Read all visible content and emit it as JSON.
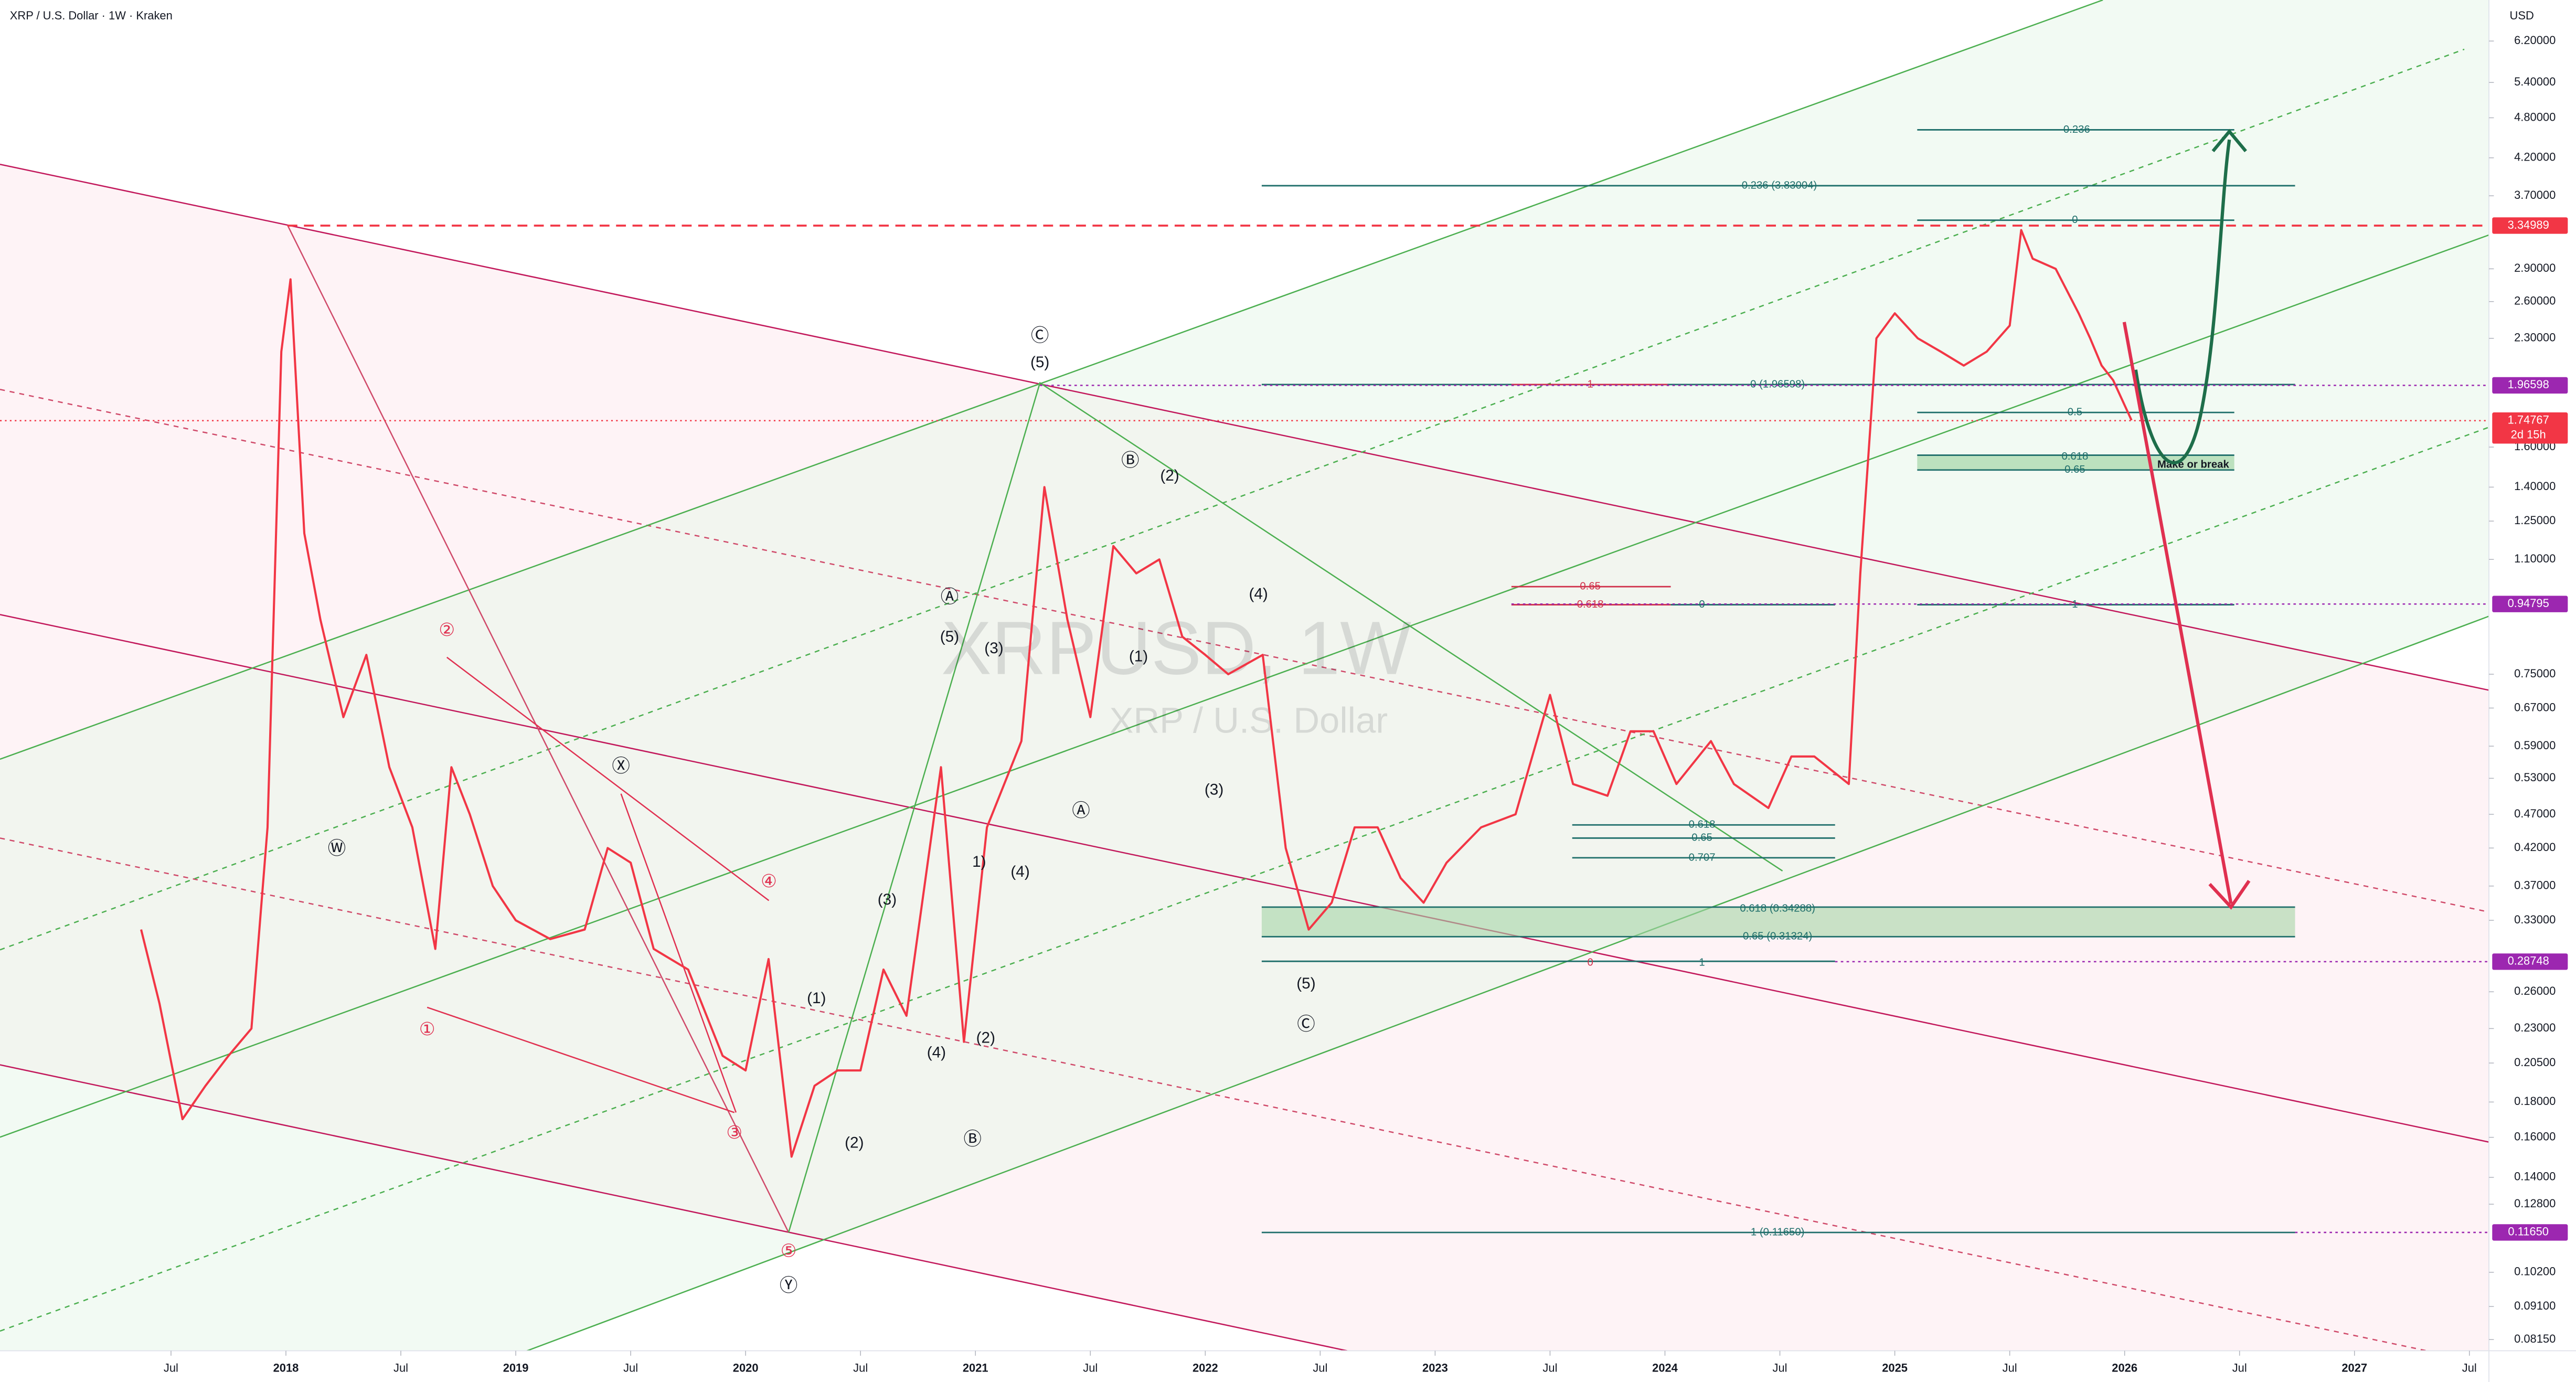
{
  "chart_data": {
    "type": "line",
    "color": "#f23645",
    "log_scale": true,
    "x": [
      2017.37,
      2017.45,
      2017.55,
      2017.65,
      2017.75,
      2017.85,
      2017.92,
      2017.98,
      2018.02,
      2018.08,
      2018.15,
      2018.25,
      2018.35,
      2018.45,
      2018.55,
      2018.65,
      2018.72,
      2018.8,
      2018.9,
      2019.0,
      2019.15,
      2019.3,
      2019.4,
      2019.5,
      2019.6,
      2019.75,
      2019.9,
      2020.0,
      2020.1,
      2020.2,
      2020.3,
      2020.4,
      2020.5,
      2020.6,
      2020.7,
      2020.85,
      2020.95,
      2021.05,
      2021.2,
      2021.3,
      2021.4,
      2021.5,
      2021.6,
      2021.7,
      2021.8,
      2021.9,
      2022.0,
      2022.1,
      2022.25,
      2022.35,
      2022.45,
      2022.55,
      2022.65,
      2022.75,
      2022.85,
      2022.95,
      2023.05,
      2023.2,
      2023.35,
      2023.5,
      2023.6,
      2023.75,
      2023.85,
      2023.95,
      2024.05,
      2024.2,
      2024.3,
      2024.45,
      2024.55,
      2024.65,
      2024.8,
      2024.85,
      2024.92,
      2025.0,
      2025.1,
      2025.2,
      2025.3,
      2025.4,
      2025.5,
      2025.55,
      2025.6,
      2025.7,
      2025.8,
      2025.85,
      2025.9,
      2025.95,
      2026.03
    ],
    "values": [
      0.32,
      0.25,
      0.17,
      0.19,
      0.21,
      0.23,
      0.45,
      2.2,
      2.8,
      1.2,
      0.9,
      0.65,
      0.8,
      0.55,
      0.45,
      0.3,
      0.55,
      0.47,
      0.37,
      0.33,
      0.31,
      0.32,
      0.42,
      0.4,
      0.3,
      0.28,
      0.21,
      0.2,
      0.29,
      0.15,
      0.19,
      0.2,
      0.2,
      0.28,
      0.24,
      0.55,
      0.22,
      0.45,
      0.6,
      1.4,
      0.9,
      0.65,
      1.15,
      1.05,
      1.1,
      0.85,
      0.8,
      0.75,
      0.8,
      0.42,
      0.32,
      0.35,
      0.45,
      0.45,
      0.38,
      0.35,
      0.4,
      0.45,
      0.47,
      0.7,
      0.52,
      0.5,
      0.62,
      0.62,
      0.52,
      0.6,
      0.52,
      0.48,
      0.57,
      0.57,
      0.52,
      1.05,
      2.3,
      2.5,
      2.3,
      2.2,
      2.1,
      2.2,
      2.4,
      3.3,
      3.0,
      2.9,
      2.5,
      2.3,
      2.1,
      2.0,
      1.75
    ],
    "xlim": [
      2016.756,
      2027.585
    ],
    "xticks": [
      {
        "value": 2017.5,
        "label": "Jul"
      },
      2018,
      {
        "value": 2018.5,
        "label": "Jul"
      },
      2019,
      {
        "value": 2019.5,
        "label": "Jul"
      },
      2020,
      {
        "value": 2020.5,
        "label": "Jul"
      },
      2021,
      {
        "value": 2021.5,
        "label": "Jul"
      },
      2022,
      {
        "value": 2022.5,
        "label": "Jul"
      },
      2023,
      {
        "value": 2023.5,
        "label": "Jul"
      },
      2024,
      {
        "value": 2024.5,
        "label": "Jul"
      },
      2025,
      {
        "value": 2025.5,
        "label": "Jul"
      },
      2026,
      {
        "value": 2026.5,
        "label": "Jul"
      },
      2027,
      {
        "value": 2027.5,
        "label": "Jul"
      }
    ],
    "ylim": [
      0.0785,
      7.11
    ],
    "yticks": [
      {
        "value": 6.2,
        "label": "6.20000"
      },
      {
        "value": 5.4,
        "label": "5.40000"
      },
      {
        "value": 4.8,
        "label": "4.80000"
      },
      {
        "value": 4.2,
        "label": "4.20000"
      },
      {
        "value": 3.7,
        "label": "3.70000"
      },
      {
        "value": 2.9,
        "label": "2.90000"
      },
      {
        "value": 2.6,
        "label": "2.60000"
      },
      {
        "value": 2.3,
        "label": "2.30000"
      },
      {
        "value": 1.6,
        "label": "1.60000"
      },
      {
        "value": 1.4,
        "label": "1.40000"
      },
      {
        "value": 1.25,
        "label": "1.25000"
      },
      {
        "value": 1.1,
        "label": "1.10000"
      },
      {
        "value": 0.75,
        "label": "0.75000"
      },
      {
        "value": 0.67,
        "label": "0.67000"
      },
      {
        "value": 0.59,
        "label": "0.59000"
      },
      {
        "value": 0.53,
        "label": "0.53000"
      },
      {
        "value": 0.47,
        "label": "0.47000"
      },
      {
        "value": 0.42,
        "label": "0.42000"
      },
      {
        "value": 0.37,
        "label": "0.37000"
      },
      {
        "value": 0.33,
        "label": "0.33000"
      },
      {
        "value": 0.26,
        "label": "0.26000"
      },
      {
        "value": 0.23,
        "label": "0.23000"
      },
      {
        "value": 0.205,
        "label": "0.20500"
      },
      {
        "value": 0.18,
        "label": "0.18000"
      },
      {
        "value": 0.16,
        "label": "0.16000"
      },
      {
        "value": 0.14,
        "label": "0.14000"
      },
      {
        "value": 0.128,
        "label": "0.12800"
      },
      {
        "value": 0.102,
        "label": "0.10200"
      },
      {
        "value": 0.091,
        "label": "0.09100"
      },
      {
        "value": 0.0815,
        "label": "0.08150"
      }
    ],
    "price_lines": [
      {
        "value": 3.34989,
        "label": "3.34989",
        "color": "#f23645"
      },
      {
        "value": 1.96598,
        "label": "1.96598",
        "color": "#9c27b0"
      },
      {
        "value": 1.74767,
        "label": "1.74767",
        "color": "#f23645"
      },
      {
        "value": 0.94795,
        "label": "0.94795",
        "color": "#9c27b0"
      },
      {
        "value": 0.28748,
        "label": "0.28748",
        "color": "#9c27b0"
      },
      {
        "value": 0.1165,
        "label": "0.11650",
        "color": "#9c27b0"
      }
    ],
    "countdown": "2d 15h"
  },
  "drawings": {
    "header": {
      "symbol": "XRP / U.S. Dollar · 1W · Kraken",
      "currency": "USD"
    },
    "watermark": {
      "ticker": "XRPUSD, 1W",
      "name": "XRP / U.S. Dollar"
    },
    "waves": [
      "Ⓦ",
      "Ⓧ",
      "Ⓨ",
      "Ⓒ",
      "Ⓐ",
      "Ⓑ",
      "Ⓐ",
      "Ⓑ",
      "Ⓒ",
      "(5)",
      "(5)",
      "(3)",
      "(3)",
      "(1)",
      "(2)",
      "(4)",
      "(2)",
      "1)",
      "(4)",
      "(1)",
      "(2)",
      "(4)",
      "(3)",
      "(5)",
      "①",
      "②",
      "③",
      "④",
      "⑤"
    ],
    "fibs": [
      "-0.236",
      "-0.236 (3.83004)",
      "0",
      "0 (1.96598)",
      "1",
      "0.5",
      "0.618",
      "0.65",
      "Make or break",
      "0.65",
      "0.618",
      "0",
      "1",
      "0.618",
      "0.65",
      "0.707",
      "0.618 (0.34288)",
      "0.65 (0.31324)",
      "0",
      "1",
      "1 (0.11650)"
    ]
  }
}
